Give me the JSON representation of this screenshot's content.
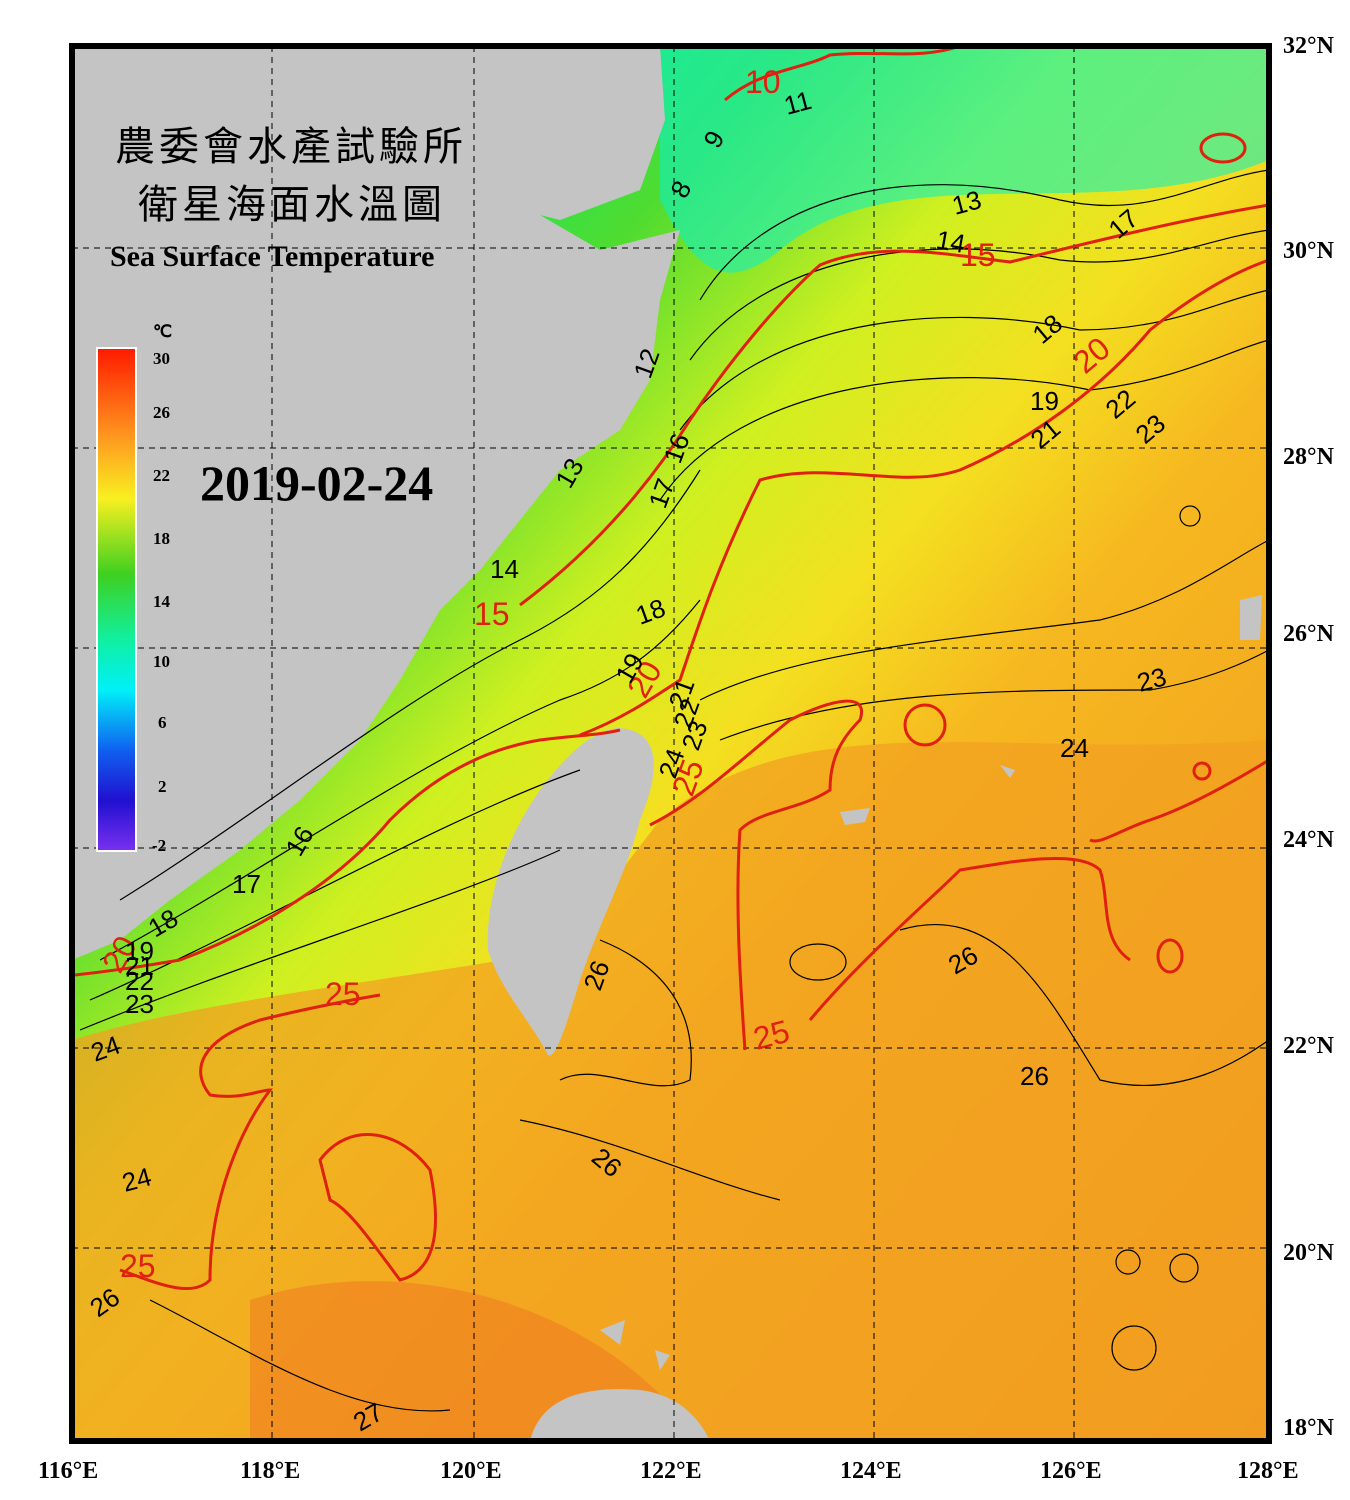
{
  "title": {
    "line1": "農委會水產試驗所",
    "line2": "衛星海面水溫圖",
    "english": "Sea Surface Temperature"
  },
  "date": "2019-02-24",
  "colorbar": {
    "unit": "℃",
    "ticks": [
      "30",
      "26",
      "22",
      "18",
      "14",
      "10",
      "6",
      "2",
      "-2"
    ]
  },
  "axes": {
    "lon_labels": [
      "116°E",
      "118°E",
      "120°E",
      "122°E",
      "124°E",
      "126°E",
      "128°E"
    ],
    "lat_labels": [
      "32°N",
      "30°N",
      "28°N",
      "26°N",
      "24°N",
      "22°N",
      "20°N",
      "18°N"
    ],
    "lon_range": [
      116,
      128
    ],
    "lat_range": [
      18,
      32
    ]
  },
  "contour_labels": {
    "red": [
      "10",
      "15",
      "15",
      "20",
      "20",
      "20",
      "25",
      "25",
      "25",
      "25"
    ],
    "black": [
      "11",
      "9",
      "8",
      "13",
      "14",
      "17",
      "18",
      "19",
      "21",
      "22",
      "23",
      "12",
      "13",
      "16",
      "17",
      "14",
      "18",
      "19",
      "21",
      "22",
      "23",
      "24",
      "23",
      "24",
      "16",
      "17",
      "18",
      "19",
      "21",
      "22",
      "23",
      "24",
      "26",
      "26",
      "26",
      "26",
      "24",
      "26",
      "27"
    ]
  },
  "colors": {
    "land": "#c4c4c4",
    "frame": "#000000",
    "red_isotherm": "#e02010"
  }
}
